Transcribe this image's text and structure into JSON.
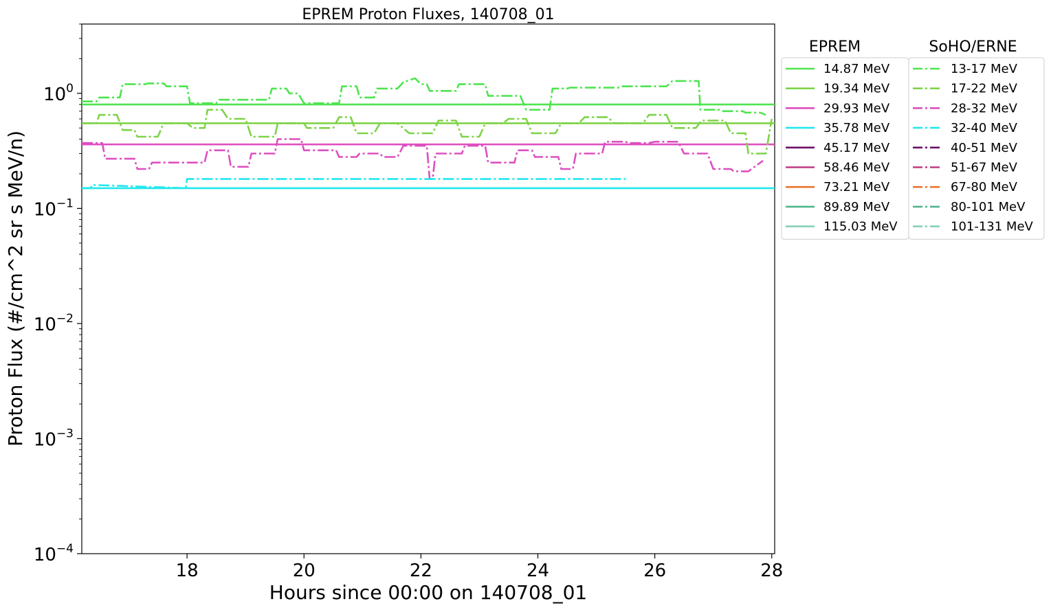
{
  "chart_data": {
    "type": "line",
    "title": "EPREM Proton Fluxes, 140708_01",
    "xlabel": "Hours since 00:00 on 140708_01",
    "ylabel": "Proton Flux (#/cm^2 sr s MeV/n)",
    "xlim": [
      16.2,
      28.05
    ],
    "ylim": [
      0.0001,
      4.0
    ],
    "yscale": "log",
    "grid": false,
    "x_ticks": [
      18,
      20,
      22,
      24,
      26,
      28
    ],
    "y_ticks": [
      {
        "value": 0.0001,
        "base": "10",
        "exp": "−4"
      },
      {
        "value": 0.001,
        "base": "10",
        "exp": "−3"
      },
      {
        "value": 0.01,
        "base": "10",
        "exp": "−2"
      },
      {
        "value": 0.1,
        "base": "10",
        "exp": "−1"
      },
      {
        "value": 1,
        "base": "10",
        "exp": "0"
      }
    ],
    "legend_placement": "outside-right",
    "legends": [
      {
        "title": "EPREM",
        "style": "solid",
        "entries": [
          {
            "label": "14.87 MeV",
            "color": "#4ee44e"
          },
          {
            "label": "19.34 MeV",
            "color": "#7ed348"
          },
          {
            "label": "29.93 MeV",
            "color": "#dd4fc0"
          },
          {
            "label": "35.78 MeV",
            "color": "#20e8ee"
          },
          {
            "label": "45.17 MeV",
            "color": "#6c0f66"
          },
          {
            "label": "58.46 MeV",
            "color": "#c03a82"
          },
          {
            "label": "73.21 MeV",
            "color": "#e8742c"
          },
          {
            "label": "89.89 MeV",
            "color": "#4fb58c"
          },
          {
            "label": "115.03 MeV",
            "color": "#86cfb8"
          }
        ]
      },
      {
        "title": "SoHO/ERNE",
        "style": "dashdot",
        "entries": [
          {
            "label": "13-17 MeV",
            "color": "#4ee44e"
          },
          {
            "label": "17-22 MeV",
            "color": "#7ed348"
          },
          {
            "label": "28-32 MeV",
            "color": "#dd4fc0"
          },
          {
            "label": "32-40 MeV",
            "color": "#20e8ee"
          },
          {
            "label": "40-51 MeV",
            "color": "#6c0f66"
          },
          {
            "label": "51-67 MeV",
            "color": "#c03a82"
          },
          {
            "label": "67-80 MeV",
            "color": "#e8742c"
          },
          {
            "label": "80-101 MeV",
            "color": "#4fb58c"
          },
          {
            "label": "101-131 MeV",
            "color": "#86cfb8"
          }
        ]
      }
    ],
    "eprem_series": [
      {
        "name": "14.87 MeV",
        "color": "#4ee44e",
        "x": [
          16.2,
          28.05
        ],
        "y": [
          0.8,
          0.8
        ]
      },
      {
        "name": "19.34 MeV",
        "color": "#7ed348",
        "x": [
          16.2,
          28.05
        ],
        "y": [
          0.55,
          0.55
        ]
      },
      {
        "name": "29.93 MeV",
        "color": "#dd4fc0",
        "x": [
          16.2,
          28.05
        ],
        "y": [
          0.36,
          0.36
        ]
      },
      {
        "name": "35.78 MeV",
        "color": "#20e8ee",
        "x": [
          16.2,
          18.0,
          18.0,
          28.05
        ],
        "y": [
          0.15,
          0.15,
          0.15,
          0.15
        ]
      }
    ],
    "erne_series": [
      {
        "name": "13-17 MeV",
        "color": "#4ee44e",
        "x": [
          16.2,
          16.45,
          16.5,
          16.85,
          16.9,
          17.3,
          17.32,
          17.6,
          17.65,
          18.0,
          18.05,
          18.5,
          18.55,
          19.4,
          19.45,
          19.7,
          19.75,
          19.9,
          20.0,
          20.6,
          20.65,
          20.9,
          20.95,
          21.2,
          21.25,
          21.6,
          21.7,
          21.9,
          22.0,
          22.1,
          22.15,
          22.6,
          22.65,
          23.1,
          23.15,
          23.7,
          23.8,
          24.2,
          24.25,
          24.5,
          24.55,
          25.4,
          25.45,
          26.2,
          26.3,
          26.75,
          26.78,
          27.1,
          27.15,
          27.5,
          27.55,
          27.8,
          27.9
        ],
        "y": [
          0.85,
          0.85,
          0.92,
          0.92,
          1.2,
          1.2,
          1.22,
          1.22,
          1.15,
          1.15,
          0.82,
          0.82,
          0.88,
          0.88,
          1.1,
          1.1,
          1.0,
          1.0,
          0.82,
          0.82,
          1.15,
          1.15,
          0.92,
          0.92,
          1.1,
          1.1,
          1.25,
          1.35,
          1.2,
          1.2,
          1.05,
          1.05,
          1.2,
          1.2,
          0.95,
          0.95,
          0.72,
          0.72,
          1.1,
          1.1,
          1.12,
          1.12,
          1.15,
          1.15,
          1.28,
          1.28,
          0.72,
          0.72,
          0.7,
          0.7,
          0.68,
          0.68,
          0.65
        ]
      },
      {
        "name": "17-22 MeV",
        "color": "#7ed348",
        "x": [
          16.2,
          16.45,
          16.5,
          16.8,
          16.9,
          17.1,
          17.15,
          17.5,
          17.6,
          18.0,
          18.1,
          18.3,
          18.35,
          18.6,
          18.7,
          19.0,
          19.1,
          19.5,
          19.55,
          20.0,
          20.05,
          20.5,
          20.6,
          20.8,
          20.9,
          21.2,
          21.3,
          21.6,
          21.8,
          22.2,
          22.3,
          22.6,
          22.7,
          23.0,
          23.1,
          23.4,
          23.5,
          23.8,
          23.9,
          24.3,
          24.4,
          24.7,
          24.8,
          25.2,
          25.3,
          25.8,
          25.9,
          26.2,
          26.3,
          26.7,
          26.8,
          27.2,
          27.3,
          27.55,
          27.6,
          27.9,
          28.0
        ],
        "y": [
          0.55,
          0.55,
          0.65,
          0.65,
          0.48,
          0.48,
          0.42,
          0.42,
          0.55,
          0.55,
          0.5,
          0.5,
          0.72,
          0.72,
          0.6,
          0.6,
          0.42,
          0.42,
          0.55,
          0.55,
          0.5,
          0.5,
          0.62,
          0.62,
          0.45,
          0.45,
          0.55,
          0.55,
          0.45,
          0.45,
          0.58,
          0.58,
          0.42,
          0.42,
          0.55,
          0.55,
          0.6,
          0.6,
          0.45,
          0.45,
          0.55,
          0.55,
          0.62,
          0.62,
          0.55,
          0.55,
          0.65,
          0.65,
          0.5,
          0.5,
          0.58,
          0.58,
          0.45,
          0.45,
          0.3,
          0.3,
          0.6
        ]
      },
      {
        "name": "28-32 MeV",
        "color": "#dd4fc0",
        "x": [
          16.2,
          16.55,
          16.6,
          17.1,
          17.15,
          17.35,
          17.4,
          17.8,
          17.85,
          18.3,
          18.35,
          18.7,
          18.75,
          19.05,
          19.1,
          19.5,
          19.55,
          19.95,
          20.0,
          20.55,
          20.6,
          20.9,
          20.95,
          21.3,
          21.35,
          21.6,
          21.7,
          22.1,
          22.15,
          22.2,
          22.25,
          22.7,
          22.75,
          23.1,
          23.15,
          23.6,
          23.65,
          23.9,
          23.95,
          24.35,
          24.4,
          24.6,
          24.65,
          25.1,
          25.15,
          25.5,
          25.55,
          25.9,
          26.0,
          26.4,
          26.5,
          26.9,
          27.0,
          27.3,
          27.35,
          27.55,
          27.6,
          27.85
        ],
        "y": [
          0.37,
          0.37,
          0.27,
          0.27,
          0.22,
          0.22,
          0.25,
          0.25,
          0.25,
          0.25,
          0.32,
          0.32,
          0.23,
          0.23,
          0.3,
          0.3,
          0.4,
          0.4,
          0.32,
          0.32,
          0.28,
          0.28,
          0.3,
          0.3,
          0.28,
          0.28,
          0.35,
          0.35,
          0.18,
          0.18,
          0.3,
          0.3,
          0.35,
          0.35,
          0.25,
          0.25,
          0.32,
          0.32,
          0.28,
          0.28,
          0.22,
          0.22,
          0.3,
          0.3,
          0.38,
          0.38,
          0.37,
          0.37,
          0.38,
          0.38,
          0.3,
          0.3,
          0.22,
          0.22,
          0.21,
          0.21,
          0.21,
          0.26
        ]
      },
      {
        "name": "32-40 MeV",
        "color": "#20e8ee",
        "x": [
          16.2,
          16.35,
          16.38,
          17.98,
          18.0,
          25.5
        ],
        "y": [
          0.15,
          0.15,
          0.16,
          0.15,
          0.18,
          0.18
        ]
      }
    ]
  }
}
